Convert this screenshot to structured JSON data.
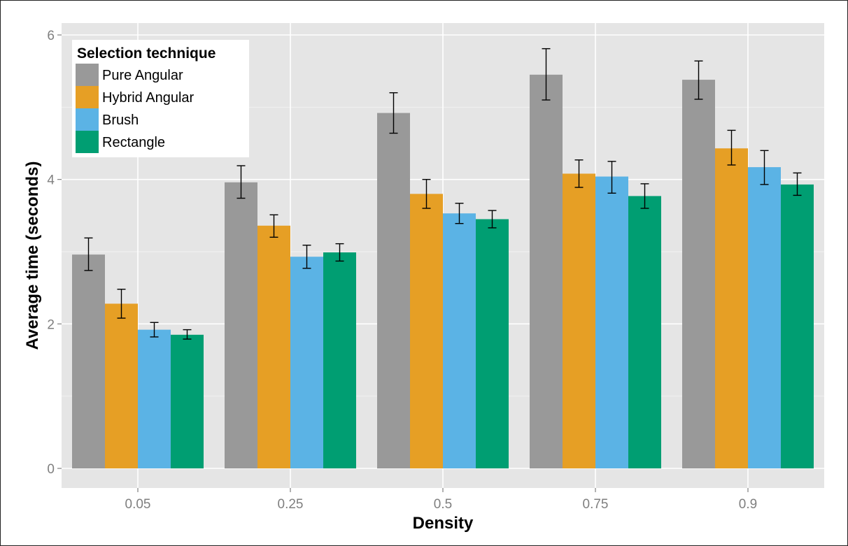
{
  "chart_data": {
    "type": "bar",
    "xlabel": "Density",
    "ylabel": "Average time (seconds)",
    "categories": [
      "0.05",
      "0.25",
      "0.5",
      "0.75",
      "0.9"
    ],
    "ylim": [
      0,
      6.2
    ],
    "yticks": [
      0,
      2,
      4,
      6
    ],
    "grid": true,
    "legend": {
      "title": "Selection technique",
      "placement": "top-left"
    },
    "series": [
      {
        "name": "Pure Angular",
        "color": "#999999",
        "values": [
          2.96,
          3.96,
          4.92,
          5.45,
          5.38
        ],
        "error_low": [
          2.74,
          3.74,
          4.64,
          5.1,
          5.11
        ],
        "error_high": [
          3.19,
          4.19,
          5.2,
          5.81,
          5.64
        ]
      },
      {
        "name": "Hybrid Angular",
        "color": "#E69F25",
        "values": [
          2.28,
          3.36,
          3.8,
          4.08,
          4.43
        ],
        "error_low": [
          2.08,
          3.2,
          3.6,
          3.89,
          4.2
        ],
        "error_high": [
          2.48,
          3.51,
          4.0,
          4.27,
          4.68
        ]
      },
      {
        "name": "Brush",
        "color": "#5BB3E5",
        "values": [
          1.92,
          2.93,
          3.53,
          4.04,
          4.17
        ],
        "error_low": [
          1.82,
          2.77,
          3.39,
          3.81,
          3.93
        ],
        "error_high": [
          2.02,
          3.09,
          3.67,
          4.25,
          4.4
        ]
      },
      {
        "name": "Rectangle",
        "color": "#009E72",
        "values": [
          1.85,
          2.99,
          3.45,
          3.77,
          3.93
        ],
        "error_low": [
          1.79,
          2.87,
          3.33,
          3.6,
          3.78
        ],
        "error_high": [
          1.92,
          3.11,
          3.57,
          3.94,
          4.09
        ]
      }
    ]
  },
  "style": {
    "panel_bg": "#E5E5E5",
    "major_grid": "#FFFFFF",
    "minor_grid": "#F2F2F2",
    "errorbar": "#000000"
  }
}
